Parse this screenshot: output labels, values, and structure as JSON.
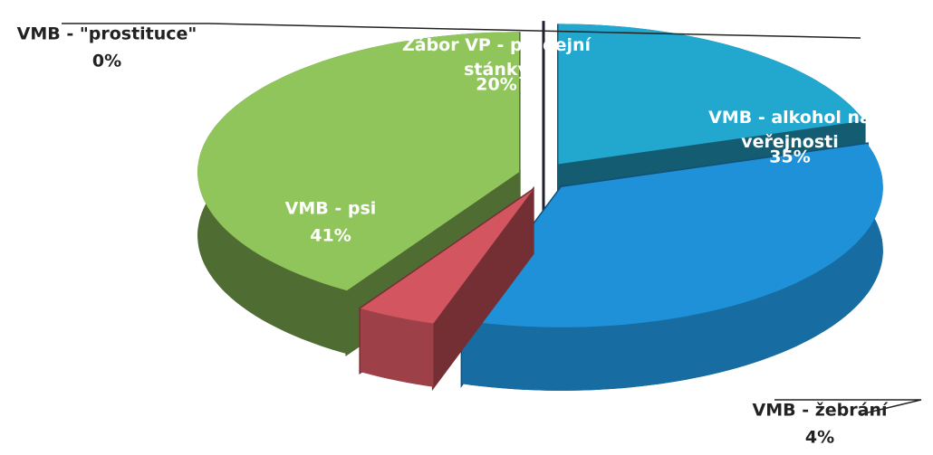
{
  "chart_data": {
    "type": "pie3d",
    "categories": [
      "Zábor VP - prodejní stánky",
      "VMB - alkohol na veřejnosti",
      "VMB - žebrání",
      "VMB - psi",
      "VMB - \"prostituce\""
    ],
    "values": [
      20,
      35,
      4,
      41,
      0
    ],
    "value_labels": [
      "20%",
      "35%",
      "4%",
      "41%",
      "0%"
    ],
    "colors": [
      "#22a7cf",
      "#1f91d8",
      "#d2555f",
      "#8fc55b",
      "#3c3752"
    ]
  }
}
